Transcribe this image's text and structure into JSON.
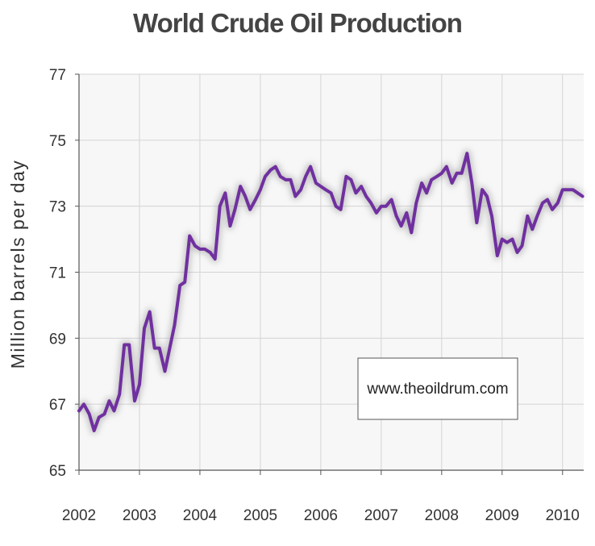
{
  "chart_data": {
    "type": "line",
    "title": "World Crude Oil Production",
    "xlabel": "",
    "ylabel": "Million barrels per day",
    "annotation": "www.theoildrum.com",
    "xlim": [
      2002.0,
      2010.35
    ],
    "ylim": [
      65,
      77
    ],
    "y_ticks": [
      65,
      67,
      69,
      71,
      73,
      75,
      77
    ],
    "x_ticks": [
      "2002",
      "2003",
      "2004",
      "2005",
      "2006",
      "2007",
      "2008",
      "2009",
      "2010"
    ],
    "grid": true,
    "line_color": "#7030a0",
    "series": [
      {
        "x": [
          2002.0,
          2002.08,
          2002.17,
          2002.25,
          2002.33,
          2002.42,
          2002.5,
          2002.58,
          2002.67,
          2002.75,
          2002.83,
          2002.92,
          2003.0,
          2003.08,
          2003.17,
          2003.25,
          2003.33,
          2003.42,
          2003.5,
          2003.58,
          2003.67,
          2003.75,
          2003.83,
          2003.92,
          2004.0,
          2004.08,
          2004.17,
          2004.25,
          2004.33,
          2004.42,
          2004.5,
          2004.58,
          2004.67,
          2004.75,
          2004.83,
          2004.92,
          2005.0,
          2005.08,
          2005.17,
          2005.25,
          2005.33,
          2005.42,
          2005.5,
          2005.58,
          2005.67,
          2005.75,
          2005.83,
          2005.92,
          2006.0,
          2006.08,
          2006.17,
          2006.25,
          2006.33,
          2006.42,
          2006.5,
          2006.58,
          2006.67,
          2006.75,
          2006.83,
          2006.92,
          2007.0,
          2007.08,
          2007.17,
          2007.25,
          2007.33,
          2007.42,
          2007.5,
          2007.58,
          2007.67,
          2007.75,
          2007.83,
          2007.92,
          2008.0,
          2008.08,
          2008.17,
          2008.25,
          2008.33,
          2008.42,
          2008.5,
          2008.58,
          2008.67,
          2008.75,
          2008.83,
          2008.92,
          2009.0,
          2009.08,
          2009.17,
          2009.25,
          2009.33,
          2009.42,
          2009.5,
          2009.58,
          2009.67,
          2009.75,
          2009.83,
          2009.92,
          2010.0,
          2010.08,
          2010.17,
          2010.25,
          2010.33
        ],
        "values": [
          66.8,
          67.0,
          66.7,
          66.2,
          66.6,
          66.7,
          67.1,
          66.8,
          67.3,
          68.8,
          68.8,
          67.1,
          67.6,
          69.3,
          69.8,
          68.7,
          68.7,
          68.0,
          68.7,
          69.4,
          70.6,
          70.7,
          72.1,
          71.8,
          71.7,
          71.7,
          71.6,
          71.4,
          73.0,
          73.4,
          72.4,
          72.9,
          73.6,
          73.3,
          72.9,
          73.2,
          73.5,
          73.9,
          74.1,
          74.2,
          73.9,
          73.8,
          73.8,
          73.3,
          73.5,
          73.9,
          74.2,
          73.7,
          73.6,
          73.5,
          73.4,
          73.0,
          72.9,
          73.9,
          73.8,
          73.4,
          73.6,
          73.3,
          73.1,
          72.8,
          73.0,
          73.0,
          73.2,
          72.7,
          72.4,
          72.8,
          72.2,
          73.1,
          73.7,
          73.4,
          73.8,
          73.9,
          74.0,
          74.2,
          73.7,
          74.0,
          74.0,
          74.6,
          73.7,
          72.5,
          73.5,
          73.3,
          72.7,
          71.5,
          72.0,
          71.9,
          72.0,
          71.6,
          71.8,
          72.7,
          72.3,
          72.7,
          73.1,
          73.2,
          72.9,
          73.1,
          73.5,
          73.5,
          73.5,
          73.4,
          73.3
        ]
      }
    ]
  }
}
